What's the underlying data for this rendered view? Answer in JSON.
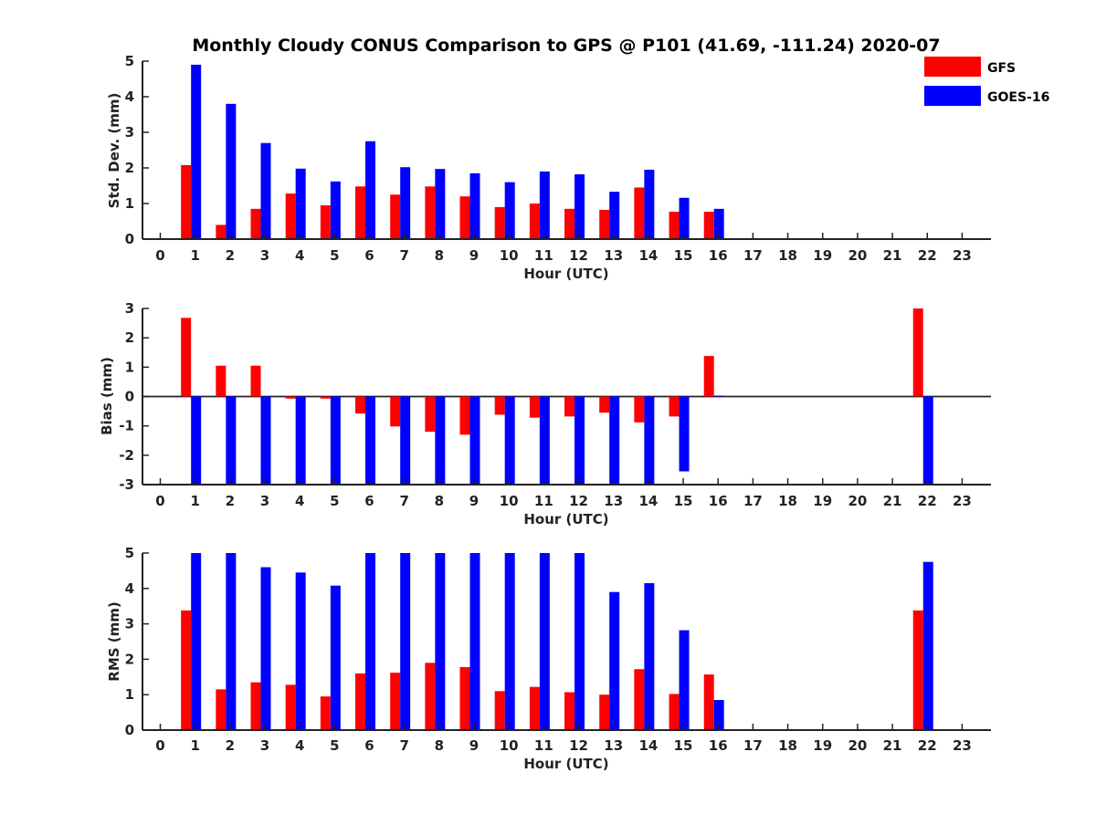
{
  "title": "Monthly Cloudy CONUS Comparison to GPS @ P101 (41.69, -111.24) 2020-07",
  "legend": {
    "placement": "top-right",
    "entries": [
      {
        "label": "GFS",
        "color": "#ff0000"
      },
      {
        "label": "GOES-16",
        "color": "#0000ff"
      }
    ]
  },
  "chart_data": [
    {
      "type": "bar",
      "ylabel": "Std. Dev. (mm)",
      "xlabel": "Hour (UTC)",
      "ylim": [
        0,
        5
      ],
      "yticks": [
        "0",
        "1",
        "2",
        "3",
        "4",
        "5"
      ],
      "categories": [
        "0",
        "1",
        "2",
        "3",
        "4",
        "5",
        "6",
        "7",
        "8",
        "9",
        "10",
        "11",
        "12",
        "13",
        "14",
        "15",
        "16",
        "17",
        "18",
        "19",
        "20",
        "21",
        "22",
        "23"
      ],
      "series": [
        {
          "name": "GFS",
          "color": "#ff0000",
          "values": [
            null,
            2.08,
            0.4,
            0.85,
            1.28,
            0.95,
            1.48,
            1.25,
            1.48,
            1.2,
            0.9,
            1.0,
            0.85,
            0.82,
            1.45,
            0.77,
            0.77,
            null,
            null,
            null,
            null,
            null,
            null,
            null
          ]
        },
        {
          "name": "GOES-16",
          "color": "#0000ff",
          "values": [
            null,
            4.9,
            3.8,
            2.7,
            1.98,
            1.62,
            2.75,
            2.02,
            1.97,
            1.85,
            1.6,
            1.9,
            1.82,
            1.33,
            1.95,
            1.16,
            0.85,
            null,
            null,
            null,
            null,
            null,
            null,
            null
          ]
        }
      ]
    },
    {
      "type": "bar",
      "ylabel": "Bias (mm)",
      "xlabel": "Hour (UTC)",
      "ylim": [
        -3,
        3
      ],
      "yticks": [
        "-3",
        "-2",
        "-1",
        "0",
        "1",
        "2",
        "3"
      ],
      "zero_line": true,
      "categories": [
        "0",
        "1",
        "2",
        "3",
        "4",
        "5",
        "6",
        "7",
        "8",
        "9",
        "10",
        "11",
        "12",
        "13",
        "14",
        "15",
        "16",
        "17",
        "18",
        "19",
        "20",
        "21",
        "22",
        "23"
      ],
      "series": [
        {
          "name": "GFS",
          "color": "#ff0000",
          "values": [
            null,
            2.68,
            1.05,
            1.05,
            -0.07,
            -0.07,
            -0.58,
            -1.02,
            -1.2,
            -1.3,
            -0.62,
            -0.72,
            -0.68,
            -0.55,
            -0.88,
            -0.68,
            1.38,
            null,
            null,
            null,
            null,
            null,
            3.0,
            null
          ]
        },
        {
          "name": "GOES-16",
          "color": "#0000ff",
          "values": [
            null,
            -3.0,
            -3.0,
            -3.0,
            -3.0,
            -3.0,
            -3.0,
            -3.0,
            -3.0,
            -3.0,
            -3.0,
            -3.0,
            -3.0,
            -3.0,
            -3.0,
            -2.55,
            0.03,
            null,
            null,
            null,
            null,
            null,
            -3.0,
            null
          ]
        }
      ]
    },
    {
      "type": "bar",
      "ylabel": "RMS (mm)",
      "xlabel": "Hour (UTC)",
      "ylim": [
        0,
        5
      ],
      "yticks": [
        "0",
        "1",
        "2",
        "3",
        "4",
        "5"
      ],
      "categories": [
        "0",
        "1",
        "2",
        "3",
        "4",
        "5",
        "6",
        "7",
        "8",
        "9",
        "10",
        "11",
        "12",
        "13",
        "14",
        "15",
        "16",
        "17",
        "18",
        "19",
        "20",
        "21",
        "22",
        "23"
      ],
      "series": [
        {
          "name": "GFS",
          "color": "#ff0000",
          "values": [
            null,
            3.38,
            1.15,
            1.35,
            1.28,
            0.95,
            1.6,
            1.62,
            1.9,
            1.78,
            1.1,
            1.22,
            1.07,
            1.0,
            1.72,
            1.02,
            1.57,
            null,
            null,
            null,
            null,
            null,
            3.38,
            null
          ]
        },
        {
          "name": "GOES-16",
          "color": "#0000ff",
          "values": [
            null,
            5.0,
            5.0,
            4.6,
            4.45,
            4.08,
            5.0,
            5.0,
            5.0,
            5.0,
            5.0,
            5.0,
            5.0,
            3.9,
            4.15,
            2.82,
            0.85,
            null,
            null,
            null,
            null,
            null,
            4.75,
            null
          ]
        }
      ]
    }
  ]
}
